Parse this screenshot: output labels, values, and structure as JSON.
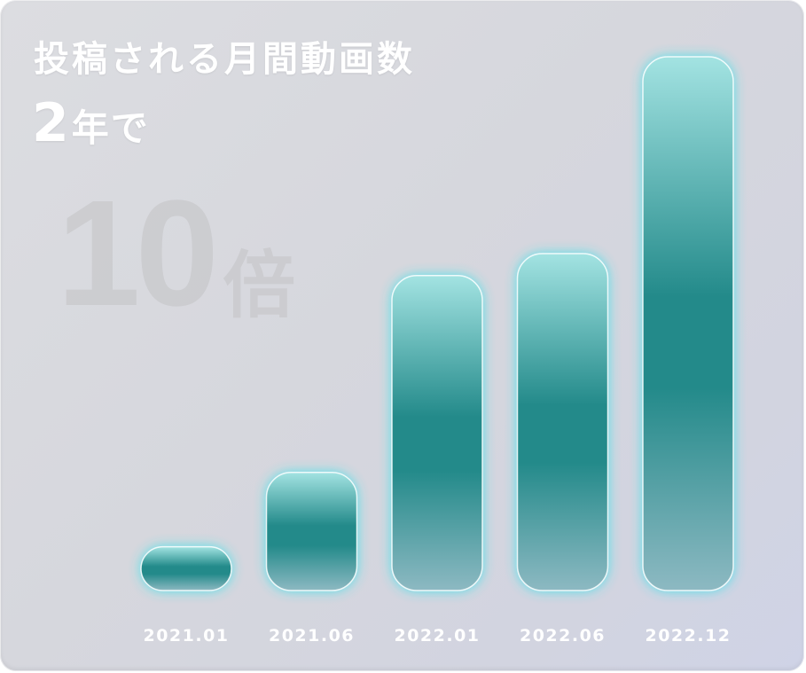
{
  "header": {
    "title": "投稿される月間動画数",
    "subtitle_number": "2",
    "subtitle_unit": "年で"
  },
  "highlight": {
    "number": "10",
    "unit": "倍"
  },
  "colors": {
    "bar_light": "#a3e3e2",
    "bar_mid": "#238a8a",
    "bar_bottom": "#8db9c2",
    "glow": "#33e3eb",
    "label": "#ffffff"
  },
  "chart_data": {
    "type": "bar",
    "categories": [
      "2021.01",
      "2021.06",
      "2022.01",
      "2022.06",
      "2022.12"
    ],
    "values": [
      1,
      2.7,
      7.2,
      7.7,
      12.2
    ],
    "ylim": [
      0,
      12.2
    ],
    "grid": false,
    "legend": "none"
  }
}
